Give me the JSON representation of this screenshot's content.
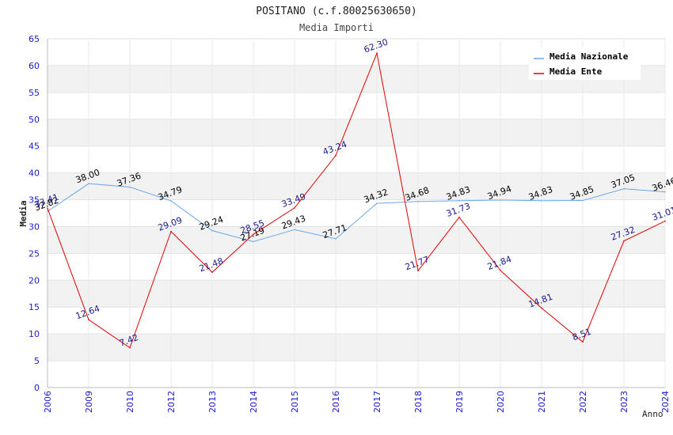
{
  "chart_data": {
    "type": "line",
    "title": "POSITANO (c.f.80025630650)",
    "subtitle": "Media Importi",
    "xlabel": "Anno",
    "ylabel": "Media",
    "ylim": [
      0,
      65
    ],
    "yticks": [
      0,
      5,
      10,
      15,
      20,
      25,
      30,
      35,
      40,
      45,
      50,
      55,
      60,
      65
    ],
    "categories": [
      "2006",
      "2009",
      "2010",
      "2012",
      "2013",
      "2014",
      "2015",
      "2016",
      "2017",
      "2018",
      "2019",
      "2020",
      "2021",
      "2022",
      "2023",
      "2024"
    ],
    "series": [
      {
        "name": "Media Nazionale",
        "color": "#6aa8e8",
        "label_color": "#000000",
        "values": [
          32.82,
          38.0,
          37.36,
          34.79,
          29.24,
          27.19,
          29.43,
          27.71,
          34.32,
          34.68,
          34.83,
          34.94,
          34.83,
          34.85,
          37.05,
          36.46
        ],
        "labels": [
          "32.82",
          "38.00",
          "37.36",
          "34.79",
          "29.24",
          "27.19",
          "29.43",
          "27.71",
          "34.32",
          "34.68",
          "34.83",
          "34.94",
          "34.83",
          "34.85",
          "37.05",
          "36.46"
        ]
      },
      {
        "name": "Media Ente",
        "color": "#e00000",
        "label_color": "#1a1a8c",
        "values": [
          33.41,
          12.64,
          7.42,
          29.09,
          21.48,
          28.55,
          33.49,
          43.24,
          62.3,
          21.77,
          31.73,
          21.84,
          14.81,
          8.51,
          27.32,
          31.01
        ],
        "labels": [
          "33.41",
          "12.64",
          "7.42",
          "29.09",
          "21.48",
          "28.55",
          "33.49",
          "43.24",
          "62.30",
          "21.77",
          "31.73",
          "21.84",
          "14.81",
          "8.51",
          "27.32",
          "31.01"
        ]
      }
    ],
    "grid": true,
    "legend": "top-right"
  }
}
